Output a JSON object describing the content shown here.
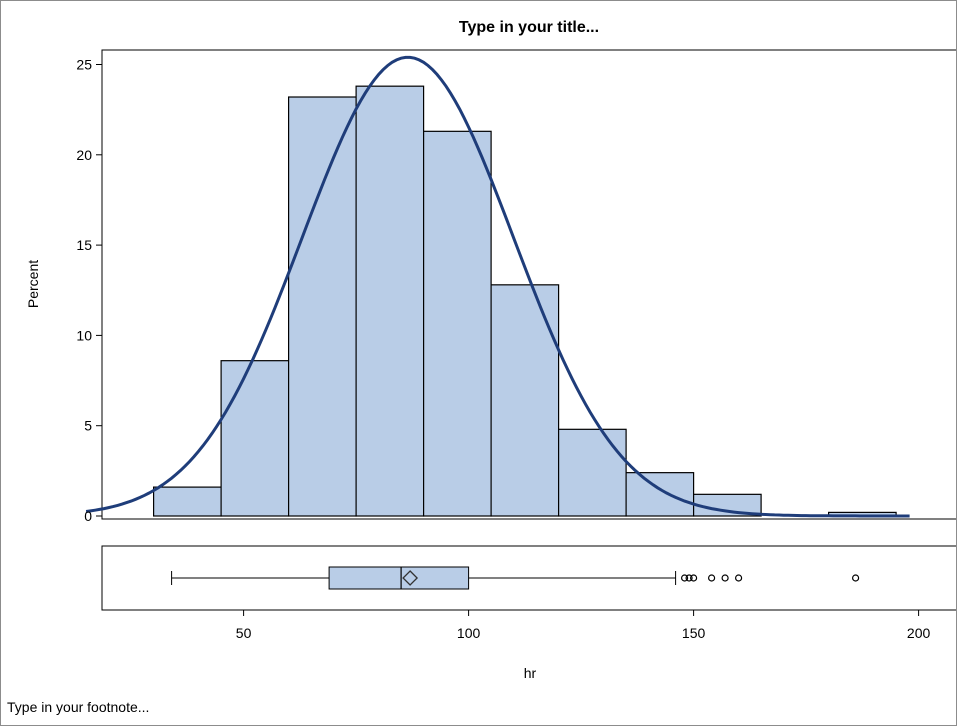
{
  "title": "Type in your title...",
  "footnote": "Type in your footnote...",
  "chart_data": [
    {
      "type": "bar",
      "subtype": "histogram",
      "xlabel": "hr",
      "ylabel": "Percent",
      "xlim": [
        15,
        202
      ],
      "ylim": [
        0,
        26.5
      ],
      "x_ticks": [
        50,
        100,
        150,
        200
      ],
      "x_tick_labels": [
        "50",
        "100",
        "150",
        "200"
      ],
      "y_ticks": [
        0,
        5,
        10,
        15,
        20,
        25
      ],
      "y_tick_labels": [
        "0",
        "5",
        "10",
        "15",
        "20",
        "25"
      ],
      "bins": [
        {
          "start": 30,
          "end": 45,
          "value": 1.6
        },
        {
          "start": 45,
          "end": 60,
          "value": 8.6
        },
        {
          "start": 60,
          "end": 75,
          "value": 23.2
        },
        {
          "start": 75,
          "end": 90,
          "value": 23.8
        },
        {
          "start": 90,
          "end": 105,
          "value": 21.3
        },
        {
          "start": 105,
          "end": 120,
          "value": 12.8
        },
        {
          "start": 120,
          "end": 135,
          "value": 4.8
        },
        {
          "start": 135,
          "end": 150,
          "value": 2.4
        },
        {
          "start": 150,
          "end": 165,
          "value": 1.2
        },
        {
          "start": 165,
          "end": 180,
          "value": 0.0
        },
        {
          "start": 180,
          "end": 195,
          "value": 0.2
        }
      ],
      "density_curve": {
        "type": "normal",
        "mean": 86.5,
        "sd": 23.5,
        "peak_percent": 25.4,
        "x_range": [
          15,
          198
        ]
      },
      "colors": {
        "bar_fill": "#b9cde7",
        "bar_stroke": "#000000",
        "curve": "#1f3d7a"
      },
      "grid": false,
      "legend": "none"
    },
    {
      "type": "boxplot",
      "xlabel": "hr",
      "whisker_low": 34,
      "q1": 69,
      "median": 85,
      "mean": 87,
      "q3": 100,
      "whisker_high": 146,
      "outliers": [
        148,
        149,
        150,
        154,
        157,
        160,
        186
      ],
      "colors": {
        "box_fill": "#b9cde7",
        "stroke": "#000000"
      }
    }
  ]
}
